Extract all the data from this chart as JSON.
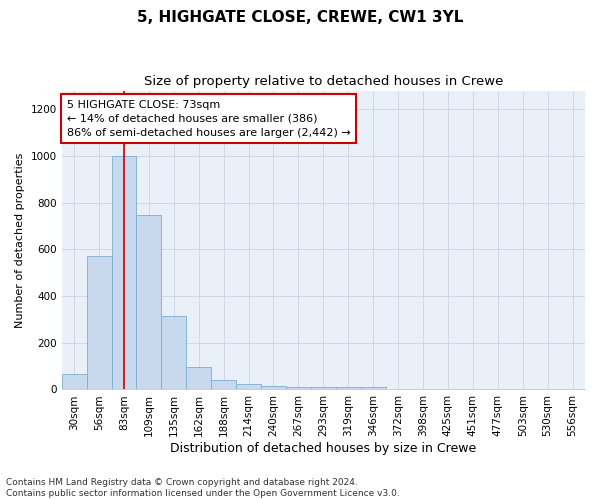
{
  "title1": "5, HIGHGATE CLOSE, CREWE, CW1 3YL",
  "title2": "Size of property relative to detached houses in Crewe",
  "xlabel": "Distribution of detached houses by size in Crewe",
  "ylabel": "Number of detached properties",
  "categories": [
    "30sqm",
    "56sqm",
    "83sqm",
    "109sqm",
    "135sqm",
    "162sqm",
    "188sqm",
    "214sqm",
    "240sqm",
    "267sqm",
    "293sqm",
    "319sqm",
    "346sqm",
    "372sqm",
    "398sqm",
    "425sqm",
    "451sqm",
    "477sqm",
    "503sqm",
    "530sqm",
    "556sqm"
  ],
  "values": [
    65,
    570,
    1000,
    745,
    315,
    95,
    40,
    25,
    15,
    10,
    10,
    10,
    10,
    0,
    0,
    0,
    0,
    0,
    0,
    0,
    0
  ],
  "bar_color": "#c9d9ed",
  "bar_edge_color": "#7bafd4",
  "property_line_x": 2.0,
  "annotation_text": "5 HIGHGATE CLOSE: 73sqm\n← 14% of detached houses are smaller (386)\n86% of semi-detached houses are larger (2,442) →",
  "annotation_box_color": "#ffffff",
  "annotation_box_edge_color": "#cc0000",
  "red_line_color": "#cc0000",
  "footer1": "Contains HM Land Registry data © Crown copyright and database right 2024.",
  "footer2": "Contains public sector information licensed under the Open Government Licence v3.0.",
  "ylim": [
    0,
    1280
  ],
  "yticks": [
    0,
    200,
    400,
    600,
    800,
    1000,
    1200
  ],
  "grid_color": "#d0d8e8",
  "bg_color": "#eaf0f8",
  "title1_fontsize": 11,
  "title2_fontsize": 9.5,
  "xlabel_fontsize": 9,
  "ylabel_fontsize": 8,
  "annot_fontsize": 8,
  "tick_fontsize": 7.5,
  "footer_fontsize": 6.5
}
